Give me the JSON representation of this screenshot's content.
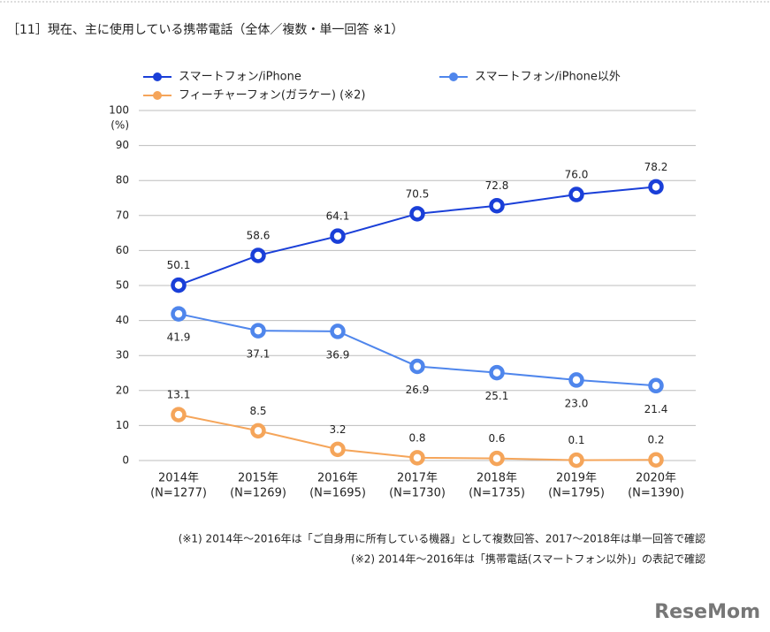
{
  "chart_data": {
    "type": "line",
    "title": "［11］現在、主に使用している携帯電話（全体／複数・単一回答 ※1）",
    "y_unit": "(%)",
    "categories": [
      "2014年",
      "2015年",
      "2016年",
      "2017年",
      "2018年",
      "2019年",
      "2020年"
    ],
    "sample_sizes": [
      "(N=1277)",
      "(N=1269)",
      "(N=1695)",
      "(N=1730)",
      "(N=1735)",
      "(N=1795)",
      "(N=1390)"
    ],
    "series": [
      {
        "name": "スマートフォン/iPhone",
        "color": "#1a3fd8",
        "values": [
          50.1,
          58.6,
          64.1,
          70.5,
          72.8,
          76.0,
          78.2
        ],
        "value_labels": [
          "50.1",
          "58.6",
          "64.1",
          "70.5",
          "72.8",
          "76.0",
          "78.2"
        ]
      },
      {
        "name": "スマートフォン/iPhone以外",
        "color": "#4f86ec",
        "values": [
          41.9,
          37.1,
          36.9,
          26.9,
          25.1,
          23.0,
          21.4
        ],
        "value_labels": [
          "41.9",
          "37.1",
          "36.9",
          "26.9",
          "25.1",
          "23.0",
          "21.4"
        ]
      },
      {
        "name": "フィーチャーフォン(ガラケー) (※2)",
        "color": "#f5a55a",
        "values": [
          13.1,
          8.5,
          3.2,
          0.8,
          0.6,
          0.1,
          0.2
        ],
        "value_labels": [
          "13.1",
          "8.5",
          "3.2",
          "0.8",
          "0.6",
          "0.1",
          "0.2"
        ]
      }
    ],
    "ylim": [
      0,
      100
    ],
    "yticks": [
      0,
      10,
      20,
      30,
      40,
      50,
      60,
      70,
      80,
      90,
      100
    ],
    "grid": true,
    "notes": [
      "(※1) 2014年～2016年は「ご自身用に所有している機器」として複数回答、2017～2018年は単一回答で確認",
      "(※2) 2014年～2016年は「携帯電話(スマートフォン以外)」の表記で確認"
    ],
    "watermark": "ReseMom"
  }
}
